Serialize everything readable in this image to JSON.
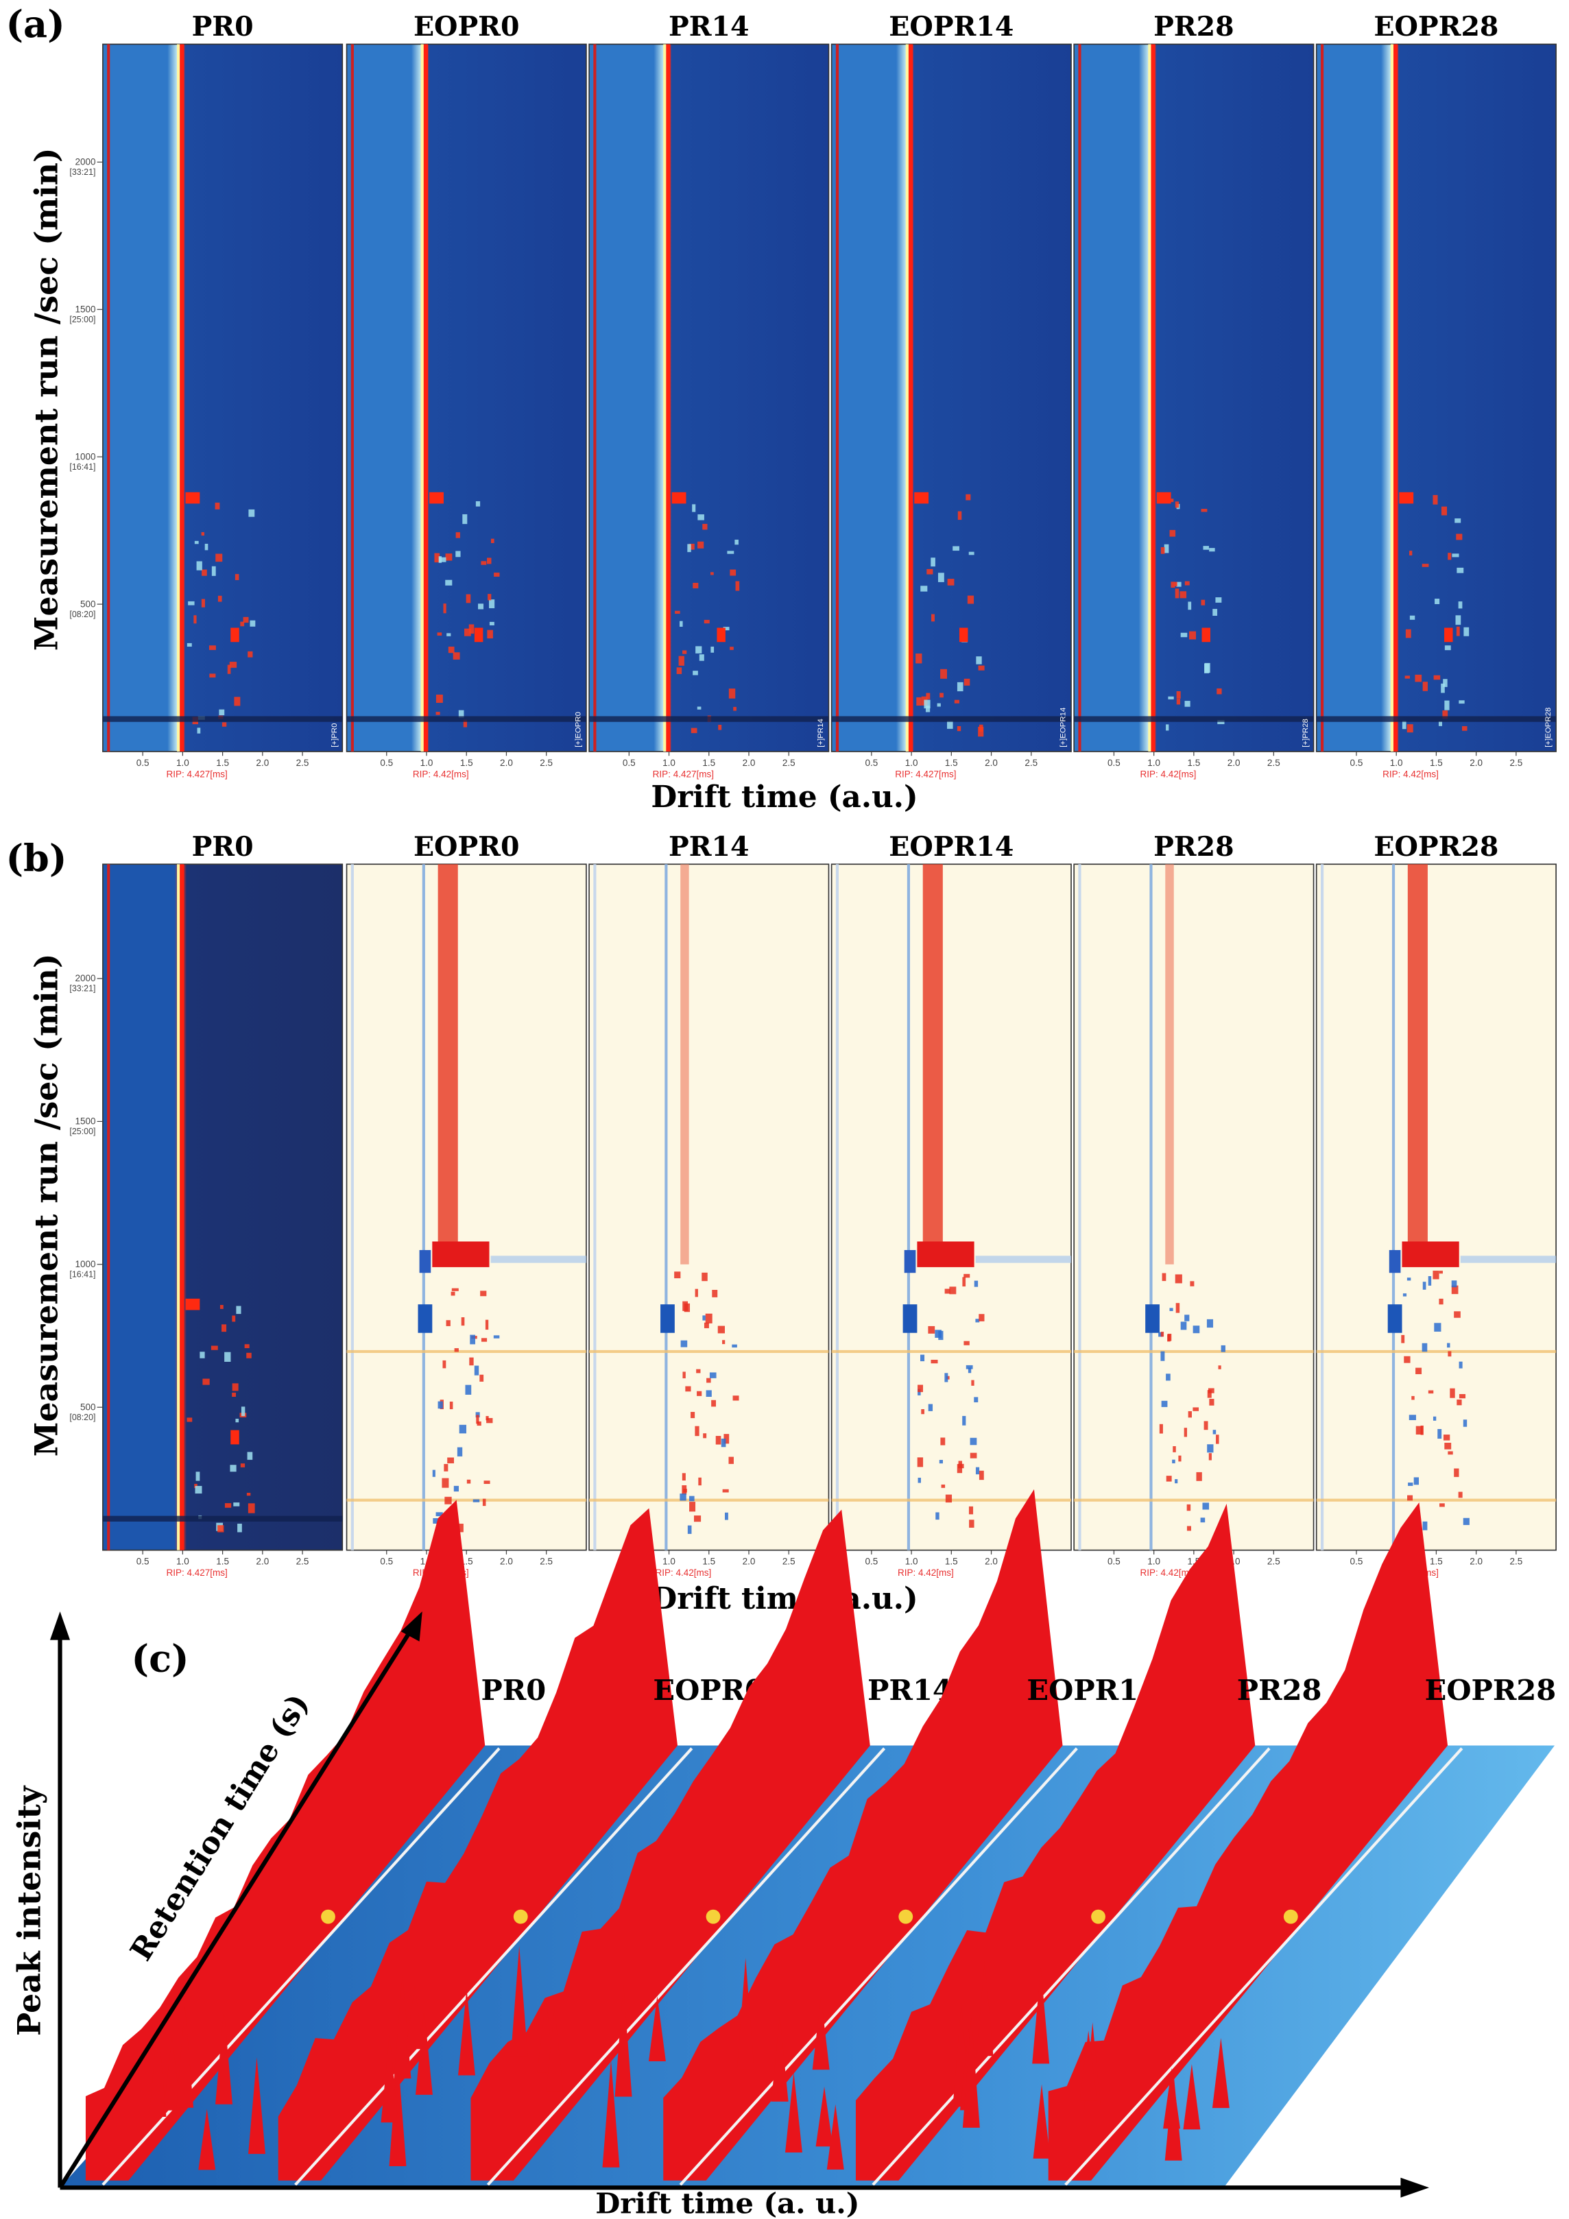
{
  "chart_data": [
    {
      "type": "heatmap",
      "panel_label": "(a)",
      "ylabel": "Measurement run /sec (min)",
      "xlabel": "Drift time (a.u.)",
      "xlim": [
        0,
        3.0
      ],
      "ylim": [
        0,
        2400
      ],
      "xticks": [
        "0.5",
        "1.0",
        "1.5",
        "2.0",
        "2.5"
      ],
      "xtick_values": [
        0.5,
        1.0,
        1.5,
        2.0,
        2.5
      ],
      "yticks": [
        {
          "value": 2000,
          "label": "2000",
          "sub": "[33:21]"
        },
        {
          "value": 1500,
          "label": "1500",
          "sub": "[25:00]"
        },
        {
          "value": 1000,
          "label": "1000",
          "sub": "[16:41]"
        },
        {
          "value": 500,
          "label": "500",
          "sub": "[08:20]"
        }
      ],
      "panels": [
        {
          "title": "PR0",
          "rip": "RIP: 4.427[ms]",
          "tag": "[+]PR0"
        },
        {
          "title": "EOPR0",
          "rip": "RIP: 4.42[ms]",
          "tag": "[+]EOPR0"
        },
        {
          "title": "PR14",
          "rip": "RIP: 4.427[ms]",
          "tag": "[+]PR14"
        },
        {
          "title": "EOPR14",
          "rip": "RIP: 4.427[ms]",
          "tag": "[+]EOPR14"
        },
        {
          "title": "PR28",
          "rip": "RIP: 4.42[ms]",
          "tag": "[+]PR28"
        },
        {
          "title": "EOPR28",
          "rip": "RIP: 4.42[ms]",
          "tag": "[+]EOPR28"
        }
      ]
    },
    {
      "type": "heatmap",
      "panel_label": "(b)",
      "ylabel": "Measurement run /sec (min)",
      "xlabel": "Drift time (a.u.)",
      "mode": "difference vs PR0 reference",
      "xlim": [
        0,
        3.0
      ],
      "ylim": [
        0,
        2400
      ],
      "xticks": [
        "0.5",
        "1.0",
        "1.5",
        "2.0",
        "2.5"
      ],
      "xtick_values": [
        0.5,
        1.0,
        1.5,
        2.0,
        2.5
      ],
      "yticks": [
        {
          "value": 2000,
          "label": "2000",
          "sub": "[33:21]"
        },
        {
          "value": 1500,
          "label": "1500",
          "sub": "[25:00]"
        },
        {
          "value": 1000,
          "label": "1000",
          "sub": "[16:41]"
        },
        {
          "value": 500,
          "label": "500",
          "sub": "[08:20]"
        }
      ],
      "panels": [
        {
          "title": "PR0",
          "rip": "RIP: 4.427[ms]"
        },
        {
          "title": "EOPR0",
          "rip": "RIP: 4.42[ms]"
        },
        {
          "title": "PR14",
          "rip": "RIP: 4.42[ms]"
        },
        {
          "title": "EOPR14",
          "rip": "RIP: 4.42[ms]"
        },
        {
          "title": "PR28",
          "rip": "RIP: 4.42[ms]"
        },
        {
          "title": "EOPR28",
          "rip": "RIP: 4.42[ms]"
        }
      ]
    },
    {
      "type": "area",
      "panel_label": "(c)",
      "xlabel": "Drift time (a. u.)",
      "ylabel": "Peak intensity",
      "zlabel": "Retention time (s)",
      "series": [
        "PR0",
        "EOPR0",
        "PR14",
        "EOPR14",
        "PR28",
        "EOPR28"
      ]
    }
  ],
  "colors": {
    "high": "#e8141b",
    "mid": "#f7f0a0",
    "low": "#1a4fa8",
    "bg_light": "#fdf8e4",
    "rip_text": "#e83030"
  }
}
